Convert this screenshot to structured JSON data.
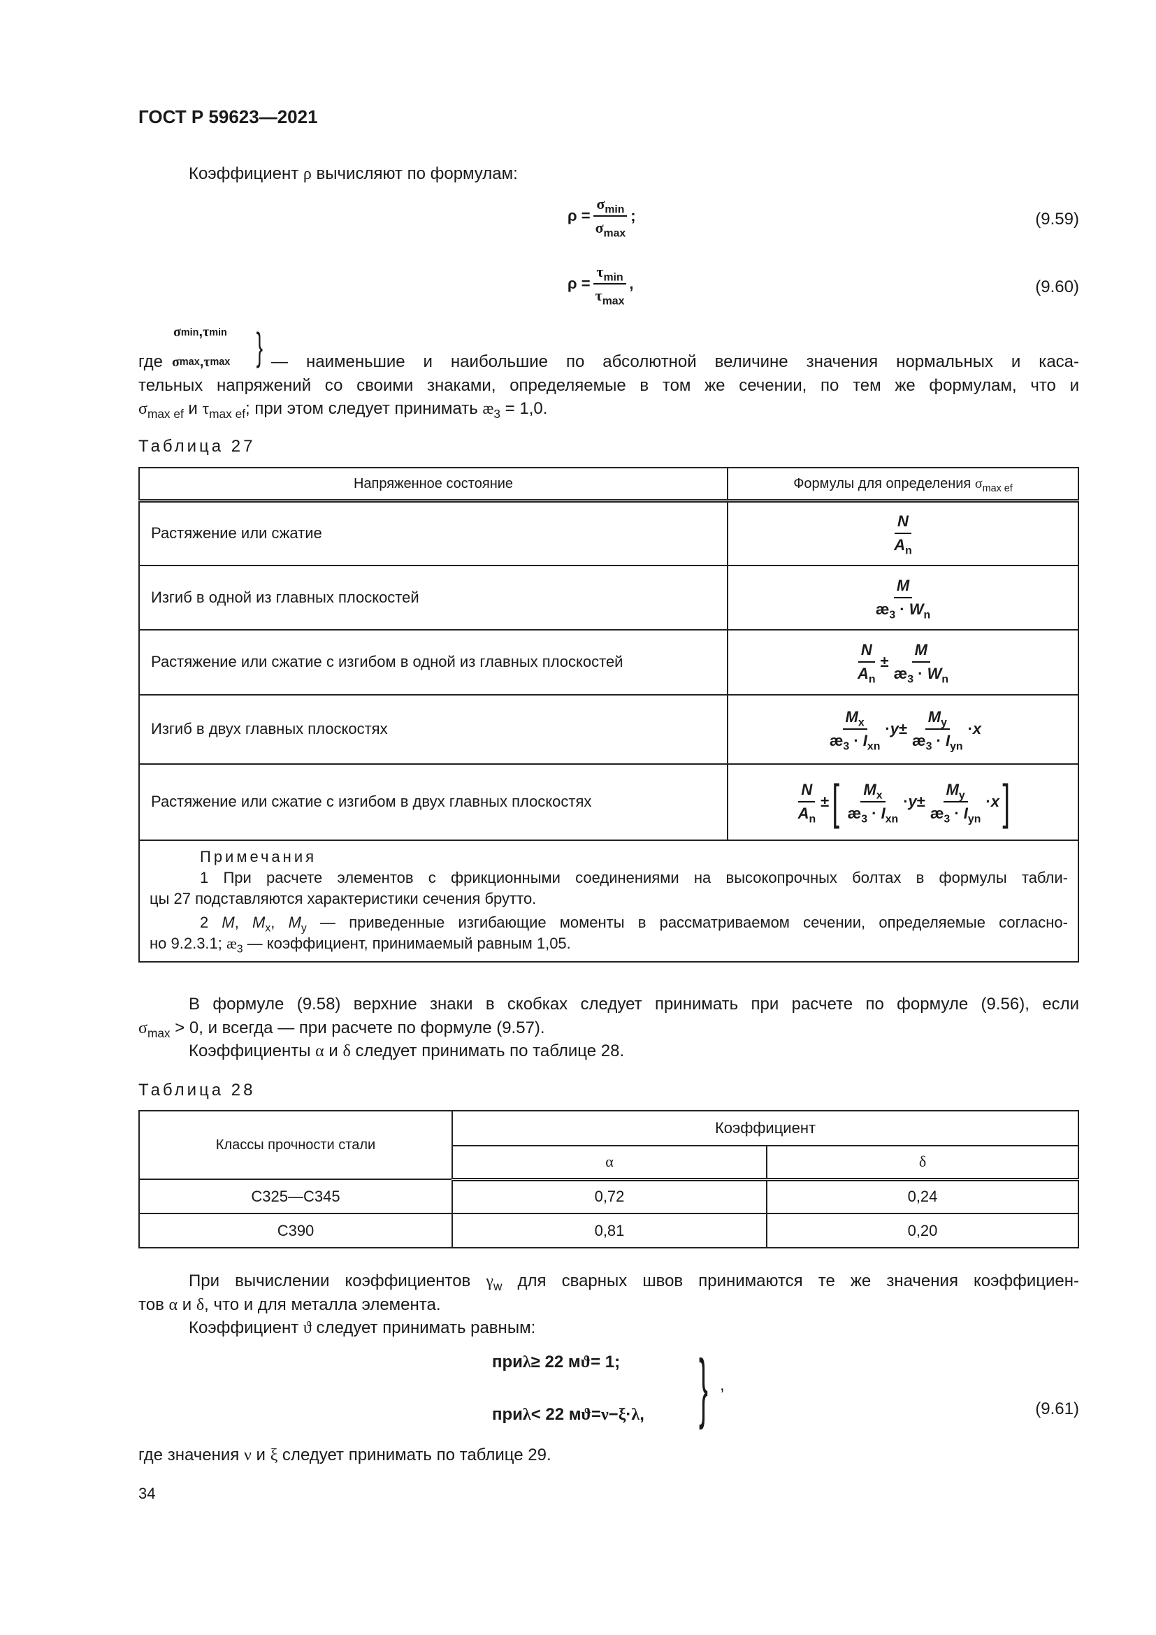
{
  "header": {
    "doc_id": "ГОСТ Р 59623—2021"
  },
  "intro": [
    {
      "t": "Коэффициент "
    },
    {
      "g": "ρ"
    },
    {
      "t": " вычисляют по формулам:"
    }
  ],
  "eq959": {
    "lhs": "ρ =",
    "num": [
      {
        "g": "σ"
      },
      {
        "sub": "min"
      }
    ],
    "den": [
      {
        "g": "σ"
      },
      {
        "sub": "max"
      }
    ],
    "punct": " ;",
    "label": "(9.59)"
  },
  "eq960": {
    "lhs": "ρ =",
    "num": [
      {
        "g": "τ"
      },
      {
        "sub": "min"
      }
    ],
    "den": [
      {
        "g": "τ"
      },
      {
        "sub": "max"
      }
    ],
    "punct": " ,",
    "label": "(9.60)"
  },
  "where": {
    "top_syms": [
      {
        "g": "σ"
      },
      {
        "sub": "min"
      },
      {
        "t": ", "
      },
      {
        "g": "τ"
      },
      {
        "sub": "min"
      }
    ],
    "lead": "где",
    "bottom_syms": [
      {
        "g": "σ"
      },
      {
        "sub": "max"
      },
      {
        "t": ", "
      },
      {
        "g": "τ"
      },
      {
        "sub": "max"
      }
    ],
    "line1": "— наименьшие и наибольшие по абсолютной величине значения нормальных и каса-",
    "line2": "тельных напряжений со своими знаками, определяемые в том же сечении, по тем же формулам, что и",
    "line3": [
      {
        "g": "σ"
      },
      {
        "sub": "max ef"
      },
      {
        "t": " и "
      },
      {
        "g": "τ"
      },
      {
        "sub": "max ef"
      },
      {
        "t": "; при этом следует принимать "
      },
      {
        "g": "æ"
      },
      {
        "sub": "3"
      },
      {
        "t": " = 1,0."
      }
    ]
  },
  "table27": {
    "caption": "Таблица 27",
    "col_state": "Напряженное состояние",
    "col_formula": [
      {
        "t": "Формулы для определения "
      },
      {
        "g": "σ"
      },
      {
        "sub": "max ef"
      }
    ],
    "rows": [
      {
        "state": "Растяжение или сжатие",
        "formula": [
          {
            "frac": {
              "num": [
                {
                  "i": "N"
                }
              ],
              "den": [
                {
                  "i": "A"
                },
                {
                  "sub": "n"
                }
              ]
            }
          }
        ]
      },
      {
        "state": "Изгиб в одной из главных плоскостей",
        "formula": [
          {
            "frac": {
              "num": [
                {
                  "i": "M"
                }
              ],
              "den": [
                {
                  "t": "æ"
                },
                {
                  "sub": "3"
                },
                {
                  "t": " · "
                },
                {
                  "i": "W"
                },
                {
                  "sub": "n"
                }
              ]
            }
          }
        ]
      },
      {
        "state": "Растяжение или сжатие с изгибом в одной из главных плоскостей",
        "formula": [
          {
            "frac": {
              "num": [
                {
                  "i": "N"
                }
              ],
              "den": [
                {
                  "i": "A"
                },
                {
                  "sub": "n"
                }
              ]
            }
          },
          {
            "t": "±"
          },
          {
            "frac": {
              "num": [
                {
                  "i": "M"
                }
              ],
              "den": [
                {
                  "t": "æ"
                },
                {
                  "sub": "3"
                },
                {
                  "t": " · "
                },
                {
                  "i": "W"
                },
                {
                  "sub": "n"
                }
              ]
            }
          }
        ]
      },
      {
        "state": "Изгиб в двух главных плоскостях",
        "formula": [
          {
            "frac": {
              "num": [
                {
                  "i": "M"
                },
                {
                  "sub": "x"
                }
              ],
              "den": [
                {
                  "t": "æ"
                },
                {
                  "sub": "3"
                },
                {
                  "t": " · "
                },
                {
                  "i": "I"
                },
                {
                  "sub": "xn"
                }
              ]
            }
          },
          {
            "t": "· "
          },
          {
            "i": "y"
          },
          {
            "t": " ±"
          },
          {
            "frac": {
              "num": [
                {
                  "i": "M"
                },
                {
                  "sub": "y"
                }
              ],
              "den": [
                {
                  "t": "æ"
                },
                {
                  "sub": "3"
                },
                {
                  "t": " · "
                },
                {
                  "i": "I"
                },
                {
                  "sub": "yn"
                }
              ]
            }
          },
          {
            "t": "· "
          },
          {
            "i": "x"
          }
        ]
      },
      {
        "state": "Растяжение или сжатие с изгибом в двух главных плоскостях",
        "formula": [
          {
            "frac": {
              "num": [
                {
                  "i": "N"
                }
              ],
              "den": [
                {
                  "i": "A"
                },
                {
                  "sub": "n"
                }
              ]
            }
          },
          {
            "t": "±"
          },
          {
            "open": "["
          },
          {
            "frac": {
              "num": [
                {
                  "i": "M"
                },
                {
                  "sub": "x"
                }
              ],
              "den": [
                {
                  "t": "æ"
                },
                {
                  "sub": "3"
                },
                {
                  "t": " · "
                },
                {
                  "i": "I"
                },
                {
                  "sub": "xn"
                }
              ]
            }
          },
          {
            "t": "· "
          },
          {
            "i": "y"
          },
          {
            "t": " ±"
          },
          {
            "frac": {
              "num": [
                {
                  "i": "M"
                },
                {
                  "sub": "y"
                }
              ],
              "den": [
                {
                  "t": "æ"
                },
                {
                  "sub": "3"
                },
                {
                  "t": " · "
                },
                {
                  "i": "I"
                },
                {
                  "sub": "yn"
                }
              ]
            }
          },
          {
            "t": "· "
          },
          {
            "i": "x"
          },
          {
            "open": "]"
          }
        ]
      }
    ],
    "notes_title": "Примечания",
    "note1_line1": "1 При расчете элементов с фрикционными соединениями на высокопрочных болтах в формулы табли-",
    "note1_line2": "цы 27 подставляются характеристики сечения брутто.",
    "note2_line1": [
      {
        "t": "2 "
      },
      {
        "i": "M"
      },
      {
        "t": ", "
      },
      {
        "i": "M"
      },
      {
        "sub": "x"
      },
      {
        "t": ", "
      },
      {
        "i": "M"
      },
      {
        "sub": "y"
      },
      {
        "t": " — приведенные изгибающие моменты в рассматриваемом сечении, определяемые согласно-"
      }
    ],
    "note2_line2": [
      {
        "t": "но 9.2.3.1; "
      },
      {
        "g": "æ"
      },
      {
        "sub": "3"
      },
      {
        "t": " — коэффициент, принимаемый равным 1,05."
      }
    ]
  },
  "para2": {
    "line1": "В формуле (9.58) верхние знаки в скобках следует принимать при расчете по формуле (9.56), если",
    "line2": [
      {
        "g": "σ"
      },
      {
        "sub": "max"
      },
      {
        "t": " > 0, и всегда — при расчете по формуле (9.57)."
      }
    ],
    "line3": [
      {
        "t": "Коэффициенты "
      },
      {
        "g": "α"
      },
      {
        "t": " и "
      },
      {
        "g": "δ"
      },
      {
        "t": " следует принимать по таблице 28."
      }
    ]
  },
  "table28": {
    "caption": "Таблица 28",
    "col_class": "Классы прочности стали",
    "col_coef": "Коэффициент",
    "col_alpha": "α",
    "col_delta": "δ",
    "rows": [
      {
        "cls": "С325—С345",
        "alpha": "0,72",
        "delta": "0,24"
      },
      {
        "cls": "С390",
        "alpha": "0,81",
        "delta": "0,20"
      }
    ]
  },
  "para3": {
    "line1": [
      {
        "t": "При вычислении коэффициентов "
      },
      {
        "g": "γ"
      },
      {
        "sub": "w"
      },
      {
        "t": " для сварных швов принимаются те же значения коэффициен-"
      }
    ],
    "line2": [
      {
        "t": "тов "
      },
      {
        "g": "α"
      },
      {
        "t": " и "
      },
      {
        "g": "δ"
      },
      {
        "t": ", что и для металла элемента."
      }
    ],
    "line3": [
      {
        "t": "Коэффициент "
      },
      {
        "g": "ϑ"
      },
      {
        "t": " следует принимать равным:"
      }
    ]
  },
  "eq961": {
    "line1": [
      {
        "t": "при "
      },
      {
        "g": "λ"
      },
      {
        "t": " ≥ 22 м  "
      },
      {
        "g": "ϑ"
      },
      {
        "t": " = 1;"
      }
    ],
    "line2": [
      {
        "t": "при "
      },
      {
        "g": "λ"
      },
      {
        "t": " < 22 м  "
      },
      {
        "g": "ϑ"
      },
      {
        "t": " = "
      },
      {
        "g": "ν"
      },
      {
        "t": " − "
      },
      {
        "g": "ξ"
      },
      {
        "t": " · "
      },
      {
        "g": "λ"
      },
      {
        "t": " ,"
      }
    ],
    "brace": "}",
    "punct": ",",
    "label": "(9.61)"
  },
  "final": [
    {
      "t": "где значения "
    },
    {
      "g": "ν"
    },
    {
      "t": " и "
    },
    {
      "g": "ξ"
    },
    {
      "t": " следует принимать по таблице 29."
    }
  ],
  "page_number": "34"
}
